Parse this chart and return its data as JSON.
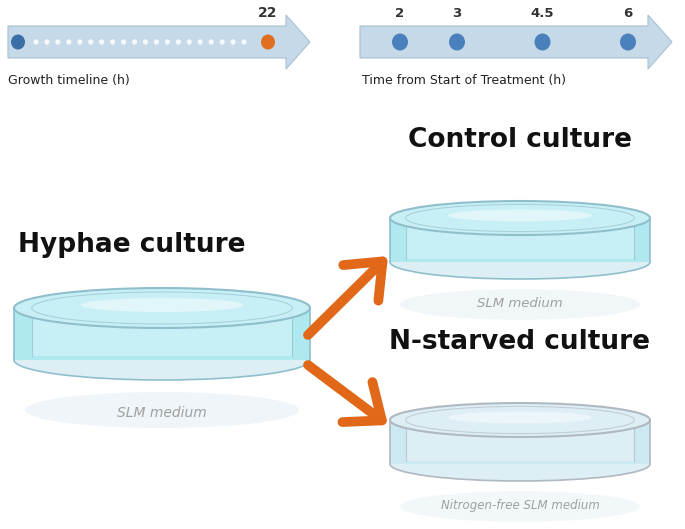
{
  "bg_color": "#ffffff",
  "arrow_body_color": "#c5d9e8",
  "arrow_edge_color": "#a8c0d4",
  "orange_dot_color": "#e07020",
  "blue_dot_color": "#3a6fa8",
  "medium_blue_dot_color": "#4a80bb",
  "growth_label": "Growth timeline (h)",
  "treatment_label": "Time from Start of Treatment (h)",
  "time_label_22": "22",
  "treatment_times": [
    "2",
    "3",
    "4.5",
    "6"
  ],
  "arrow_orange_color": "#e06818",
  "petri_fill_light": "#c8eff5",
  "petri_fill_mid": "#b0e8f0",
  "petri_rim_color": "#90bfcc",
  "petri_rim_dark": "#7aafc0",
  "petri_shadow_color": "#cce8f0",
  "slm_text_color": "#a0a0a0",
  "control_label": "Control culture",
  "nstarved_label": "N-starved culture",
  "hyphae_label": "Hyphae culture",
  "slm_medium": "SLM medium",
  "nfree_medium": "Nitrogen-free SLM medium",
  "label_color": "#111111",
  "nstarved_rim": "#b0b8c0",
  "nstarved_fill": "#ddeef5"
}
